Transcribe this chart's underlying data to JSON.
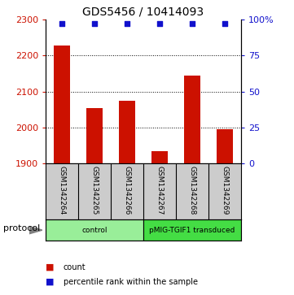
{
  "title": "GDS5456 / 10414093",
  "samples": [
    "GSM1342264",
    "GSM1342265",
    "GSM1342266",
    "GSM1342267",
    "GSM1342268",
    "GSM1342269"
  ],
  "counts": [
    2228,
    2055,
    2075,
    1935,
    2145,
    1995
  ],
  "percentiles": [
    97,
    97,
    97,
    97,
    97,
    97
  ],
  "ylim_left": [
    1900,
    2300
  ],
  "ylim_right": [
    0,
    100
  ],
  "yticks_left": [
    1900,
    2000,
    2100,
    2200,
    2300
  ],
  "yticks_right": [
    0,
    25,
    50,
    75,
    100
  ],
  "ytick_labels_right": [
    "0",
    "25",
    "50",
    "75",
    "100%"
  ],
  "bar_color": "#cc1100",
  "dot_color": "#1111cc",
  "protocol_groups": [
    {
      "label": "control",
      "samples": [
        0,
        1,
        2
      ],
      "color": "#99ee99"
    },
    {
      "label": "pMIG-TGIF1 transduced",
      "samples": [
        3,
        4,
        5
      ],
      "color": "#44dd44"
    }
  ],
  "xlabel_area_color": "#cccccc",
  "gridline_color": "#000000",
  "grid_yticks": [
    2000,
    2100,
    2200
  ],
  "legend_items": [
    {
      "color": "#cc1100",
      "label": "count"
    },
    {
      "color": "#1111cc",
      "label": "percentile rank within the sample"
    }
  ],
  "figsize": [
    3.61,
    3.63
  ],
  "dpi": 100
}
